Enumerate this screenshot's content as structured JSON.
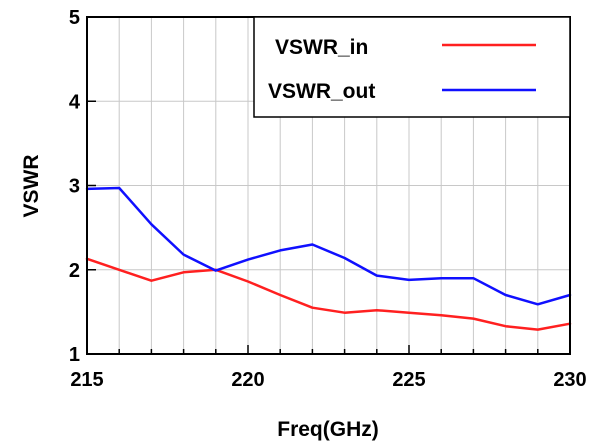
{
  "chart_data": {
    "type": "line",
    "title": "",
    "xlabel": "Freq(GHz)",
    "ylabel": "VSWR",
    "xlim": [
      215,
      230
    ],
    "ylim": [
      1,
      5
    ],
    "xticks": [
      "215",
      "220",
      "225",
      "230"
    ],
    "yticks": [
      "1",
      "2",
      "3",
      "4",
      "5"
    ],
    "grid": true,
    "legend_position": "top-right",
    "series": [
      {
        "name": "VSWR_in",
        "color": "#ff2020",
        "x": [
          215,
          216,
          217,
          218,
          219,
          220,
          221,
          222,
          223,
          224,
          225,
          226,
          227,
          228,
          229,
          230
        ],
        "y": [
          2.13,
          2.0,
          1.87,
          1.97,
          2.0,
          1.86,
          1.7,
          1.55,
          1.49,
          1.52,
          1.49,
          1.46,
          1.42,
          1.33,
          1.29,
          1.36
        ]
      },
      {
        "name": "VSWR_out",
        "color": "#1010ff",
        "x": [
          215,
          216,
          217,
          218,
          219,
          220,
          221,
          222,
          223,
          224,
          225,
          226,
          227,
          228,
          229,
          230
        ],
        "y": [
          2.96,
          2.97,
          2.54,
          2.18,
          1.99,
          2.12,
          2.23,
          2.3,
          2.14,
          1.93,
          1.88,
          1.9,
          1.9,
          1.7,
          1.59,
          1.7
        ]
      }
    ]
  }
}
